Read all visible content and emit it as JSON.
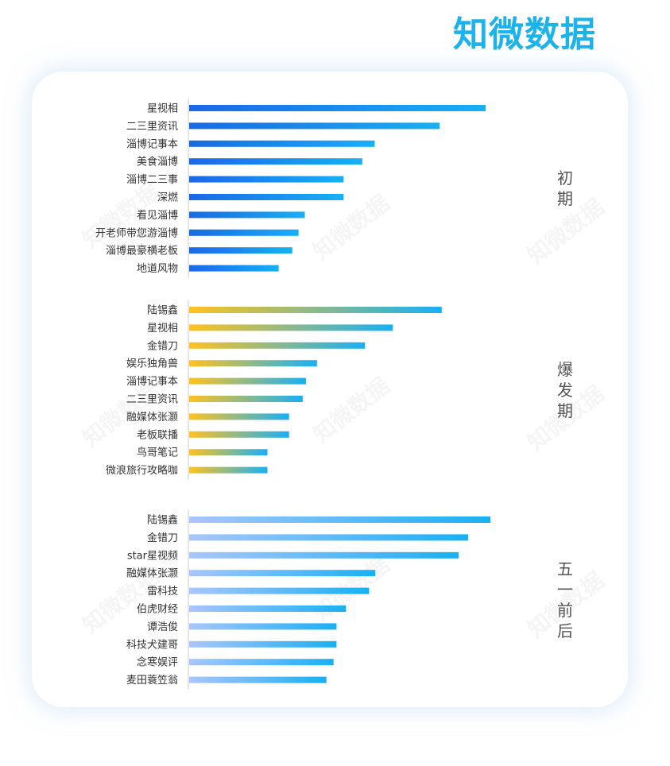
{
  "brand": {
    "logo_text": "知微数据",
    "logo_color": "#1cb2ec"
  },
  "watermark_text": "知微数据",
  "chart_data": [
    {
      "type": "bar",
      "orientation": "horizontal",
      "period": "初期",
      "categories": [
        "星视相",
        "二三里资讯",
        "淄博记事本",
        "美食淄博",
        "淄博二三事",
        "深燃",
        "看见淄博",
        "开老师带您游淄博",
        "淄博最豪横老板",
        "地道风物"
      ],
      "values": [
        100,
        84.5,
        62.6,
        58.4,
        52.1,
        52.1,
        39.0,
        36.9,
        34.8,
        30.2
      ],
      "bar_gradient": [
        "#1a68e6",
        "#18b0f5"
      ],
      "xlim": [
        0,
        100
      ]
    },
    {
      "type": "bar",
      "orientation": "horizontal",
      "period": "爆发期",
      "categories": [
        "陆锡鑫",
        "星视相",
        "金错刀",
        "娱乐独角兽",
        "淄博记事本",
        "二三里资讯",
        "融媒体张灏",
        "老板联播",
        "鸟哥笔记",
        "微浪旅行攻略咖"
      ],
      "values": [
        85.2,
        68.7,
        59.3,
        43.1,
        39.4,
        38.3,
        33.7,
        33.7,
        26.4,
        26.4
      ],
      "bar_gradient": [
        "#ffc21f",
        "#18b0f5"
      ],
      "xlim": [
        0,
        100
      ]
    },
    {
      "type": "bar",
      "orientation": "horizontal",
      "period": "五一前后",
      "categories": [
        "陆锡鑫",
        "金错刀",
        "star星视频",
        "融媒体张灏",
        "雷科技",
        "伯虎财经",
        "谭浩俊",
        "科技犬建哥",
        "念寒娱评",
        "麦田蓑笠翁"
      ],
      "values": [
        101.6,
        94.1,
        90.9,
        62.8,
        60.7,
        52.9,
        49.7,
        49.7,
        48.7,
        46.3
      ],
      "bar_gradient": [
        "#a9c6fb",
        "#18b0f5"
      ],
      "xlim": [
        0,
        100
      ]
    }
  ]
}
